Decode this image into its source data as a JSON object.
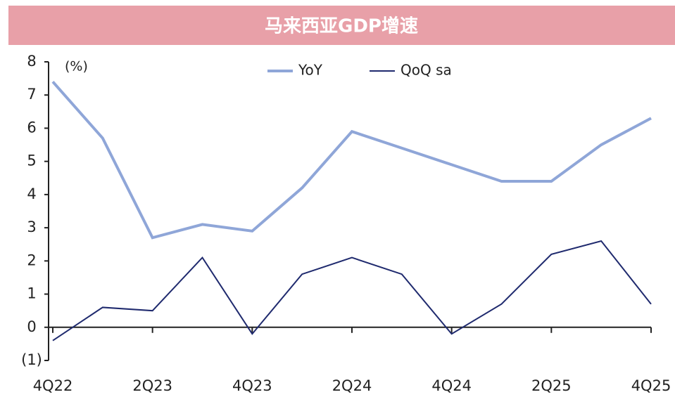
{
  "chart_data": {
    "type": "line",
    "title": "马来西亚GDP增速",
    "ylabel": "(%)",
    "categories": [
      "4Q22",
      null,
      "2Q23",
      null,
      "4Q23",
      null,
      "2Q24",
      null,
      "4Q24",
      null,
      "2Q25",
      null,
      "4Q25"
    ],
    "series": [
      {
        "name": "YoY",
        "color": "#8fa6d8",
        "values": [
          7.4,
          5.7,
          2.7,
          3.1,
          2.9,
          4.2,
          5.9,
          5.4,
          4.9,
          4.4,
          4.4,
          5.5,
          6.3
        ]
      },
      {
        "name": "QoQ sa",
        "color": "#1f2a6e",
        "values": [
          -0.4,
          0.6,
          0.5,
          2.1,
          -0.2,
          1.6,
          2.1,
          1.6,
          -0.2,
          0.7,
          2.2,
          2.6,
          0.7
        ]
      }
    ],
    "ylim": [
      -1,
      8
    ],
    "yticks": [
      {
        "value": -1,
        "label": "(1)"
      },
      0,
      1,
      2,
      3,
      4,
      5,
      6,
      7,
      8
    ],
    "legend": "top"
  }
}
